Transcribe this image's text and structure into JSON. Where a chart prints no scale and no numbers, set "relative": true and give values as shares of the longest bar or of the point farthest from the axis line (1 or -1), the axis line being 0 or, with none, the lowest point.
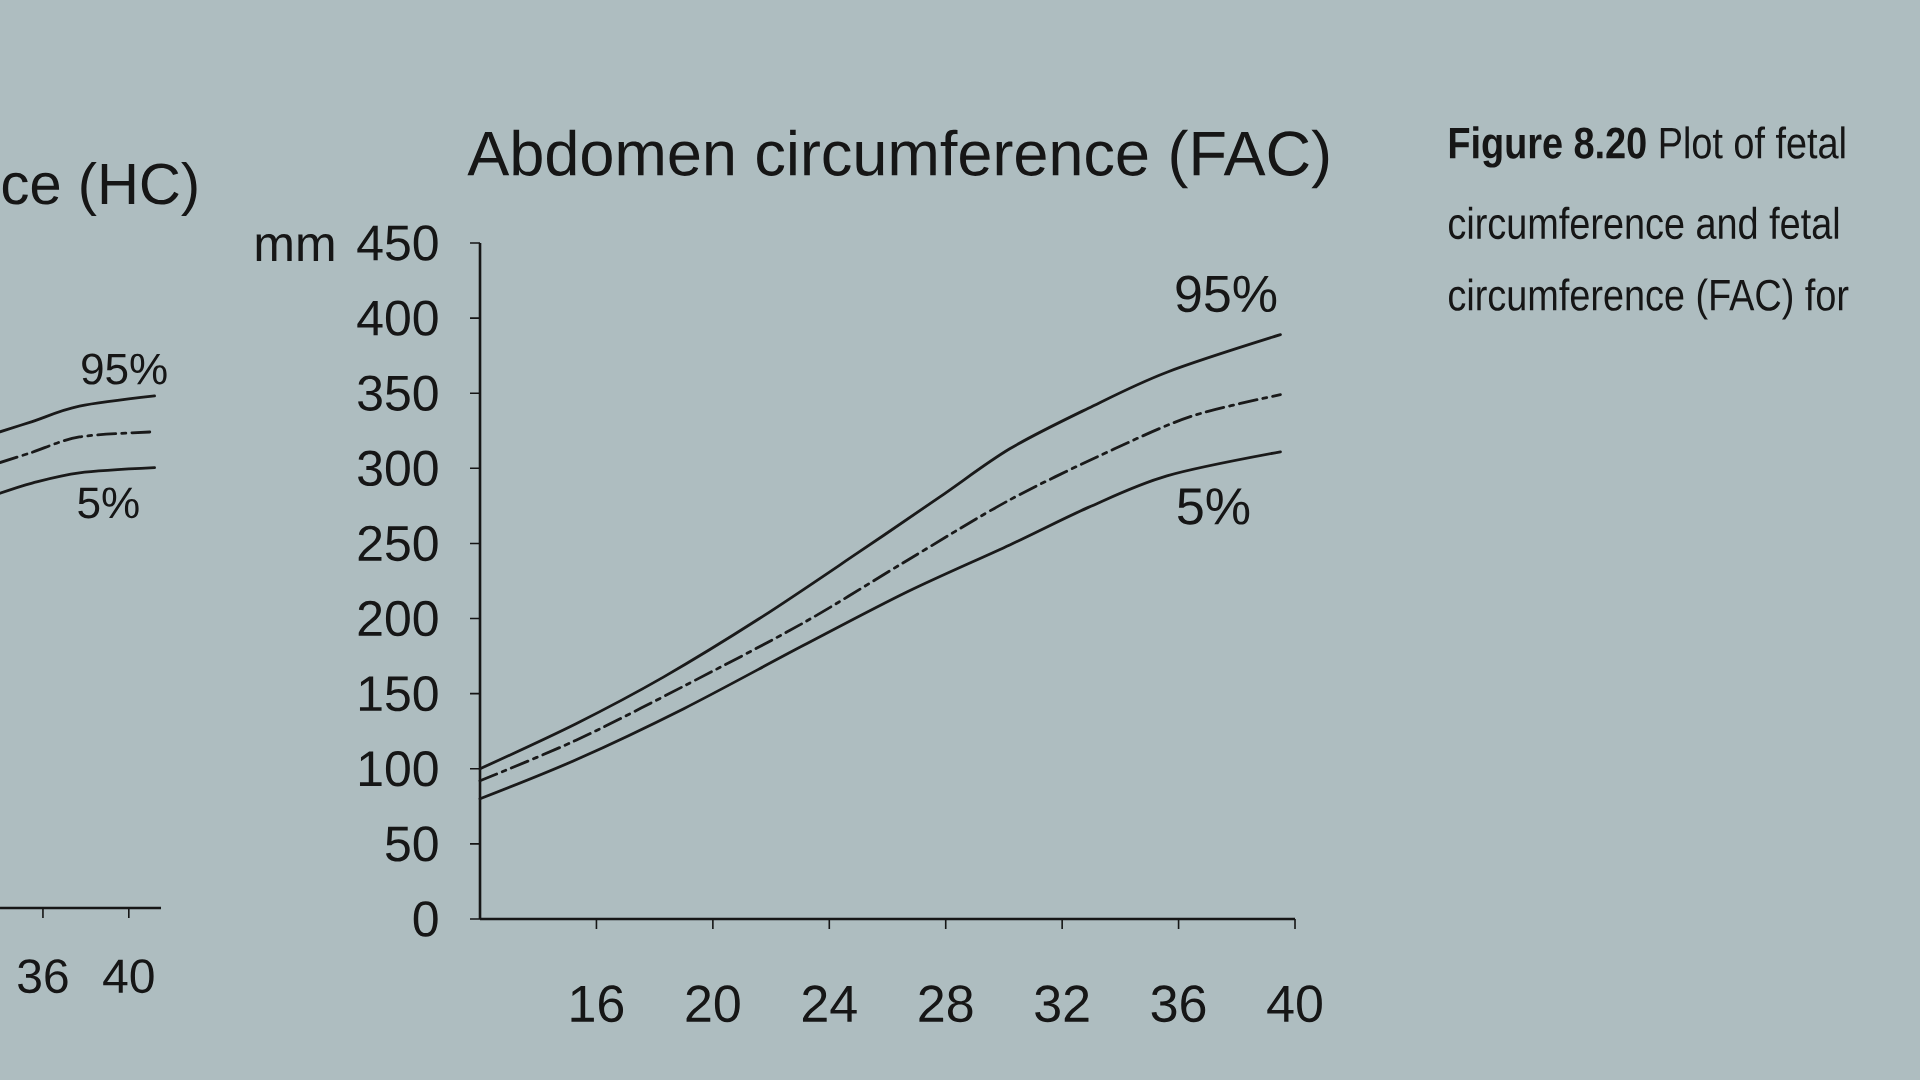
{
  "chart_data": [
    {
      "type": "line",
      "title": "ce (HC)",
      "relative": true,
      "xlim": [
        34,
        41.5
      ],
      "xticks": [
        36,
        40
      ],
      "series": [
        {
          "name": "95%",
          "color": "#1a1a1a",
          "x": [
            34,
            35.5,
            37.7,
            41.2
          ],
          "values": [
            0.93,
            0.95,
            0.98,
            1
          ]
        },
        {
          "color": "#1a1a1a",
          "line_style": "dashed",
          "x": [
            34,
            35.5,
            37.7,
            41.2
          ],
          "values": [
            0.87,
            0.89,
            0.92,
            0.93
          ]
        },
        {
          "name": "5%",
          "color": "#1a1a1a",
          "x": [
            34,
            35.5,
            37.7,
            41.2
          ],
          "values": [
            0.81,
            0.83,
            0.85,
            0.86
          ]
        }
      ]
    },
    {
      "type": "line",
      "title": "Abdomen circumference (FAC)",
      "ylabel": "mm",
      "xlim": [
        12,
        40
      ],
      "xticks": [
        16,
        20,
        24,
        28,
        32,
        36,
        40
      ],
      "ylim": [
        0,
        450
      ],
      "yticks": [
        0,
        50,
        100,
        150,
        200,
        250,
        300,
        350,
        400,
        450
      ],
      "series": [
        {
          "name": "95%",
          "color": "#1a1a1a",
          "x": [
            12,
            15.3,
            18.3,
            21.6,
            25,
            27.8,
            30.2,
            32.9,
            35.6,
            39.5
          ],
          "values": [
            100,
            130,
            161,
            200,
            244,
            281,
            313,
            340,
            364,
            389
          ]
        },
        {
          "color": "#1a1a1a",
          "line_style": "dashed",
          "x": [
            12,
            15.3,
            19,
            23.1,
            26.7,
            30.2,
            33.8,
            36.5,
            39.5
          ],
          "values": [
            92,
            119,
            155,
            197,
            239,
            279,
            313,
            335,
            349
          ]
        },
        {
          "name": "5%",
          "color": "#1a1a1a",
          "x": [
            12,
            15.3,
            19,
            23.1,
            26.7,
            30.2,
            32.9,
            35.6,
            39.5
          ],
          "values": [
            80,
            106,
            140,
            182,
            218,
            249,
            274,
            295,
            311
          ]
        }
      ],
      "annotations": [
        "**Figure 8.20** Plot of fetal",
        "circumference and fetal",
        "circumference (FAC) for"
      ]
    }
  ]
}
